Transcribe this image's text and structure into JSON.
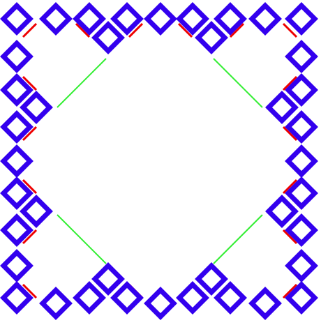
{
  "figure": {
    "background": "#ffffff",
    "colors": {
      "squares": "#3300ee",
      "inner_diagonals": "#ee0000",
      "center_diagonals": "#33ee33"
    },
    "description_icon": "square-fractal-tiling"
  }
}
